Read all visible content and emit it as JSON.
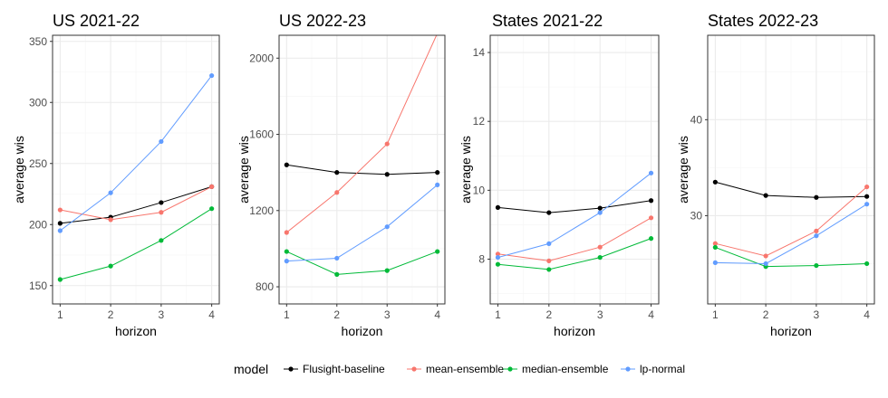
{
  "chart_data": [
    {
      "type": "line",
      "title": "US 2021-22",
      "xlabel": "horizon",
      "ylabel": "average wis",
      "x": [
        1,
        2,
        3,
        4
      ],
      "xlim": [
        0.85,
        4.15
      ],
      "ylim": [
        135,
        355
      ],
      "yticks": [
        150,
        200,
        250,
        300,
        350
      ],
      "series": [
        {
          "name": "Flusight-baseline",
          "values": [
            201,
            206,
            218,
            231
          ]
        },
        {
          "name": "mean-ensemble",
          "values": [
            212,
            204,
            210,
            231
          ]
        },
        {
          "name": "median-ensemble",
          "values": [
            155,
            166,
            187,
            213
          ]
        },
        {
          "name": "lp-normal",
          "values": [
            195,
            226,
            268,
            322
          ]
        }
      ]
    },
    {
      "type": "line",
      "title": "US 2022-23",
      "xlabel": "horizon",
      "ylabel": "average wis",
      "x": [
        1,
        2,
        3,
        4
      ],
      "xlim": [
        0.85,
        4.15
      ],
      "ylim": [
        710,
        2120
      ],
      "yticks": [
        800,
        1200,
        1600,
        2000
      ],
      "series": [
        {
          "name": "Flusight-baseline",
          "values": [
            1440,
            1400,
            1390,
            1400
          ]
        },
        {
          "name": "mean-ensemble",
          "values": [
            1085,
            1295,
            1550,
            2130
          ]
        },
        {
          "name": "median-ensemble",
          "values": [
            985,
            865,
            885,
            985
          ]
        },
        {
          "name": "lp-normal",
          "values": [
            935,
            950,
            1115,
            1335
          ]
        }
      ]
    },
    {
      "type": "line",
      "title": "States 2021-22",
      "xlabel": "horizon",
      "ylabel": "average wis",
      "x": [
        1,
        2,
        3,
        4
      ],
      "xlim": [
        0.85,
        4.15
      ],
      "ylim": [
        6.7,
        14.5
      ],
      "yticks": [
        8,
        10,
        12,
        14
      ],
      "series": [
        {
          "name": "Flusight-baseline",
          "values": [
            9.5,
            9.35,
            9.48,
            9.7
          ]
        },
        {
          "name": "mean-ensemble",
          "values": [
            8.15,
            7.95,
            8.35,
            9.2
          ]
        },
        {
          "name": "median-ensemble",
          "values": [
            7.85,
            7.7,
            8.05,
            8.6
          ]
        },
        {
          "name": "lp-normal",
          "values": [
            8.05,
            8.45,
            9.35,
            10.5
          ]
        }
      ]
    },
    {
      "type": "line",
      "title": "States 2022-23",
      "xlabel": "horizon",
      "ylabel": "average wis",
      "x": [
        1,
        2,
        3,
        4
      ],
      "xlim": [
        0.85,
        4.15
      ],
      "ylim": [
        20.8,
        48.8
      ],
      "yticks": [
        30,
        40
      ],
      "series": [
        {
          "name": "Flusight-baseline",
          "values": [
            33.5,
            32.1,
            31.9,
            32
          ]
        },
        {
          "name": "mean-ensemble",
          "values": [
            27.1,
            25.8,
            28.4,
            33
          ]
        },
        {
          "name": "median-ensemble",
          "values": [
            26.7,
            24.7,
            24.8,
            25
          ]
        },
        {
          "name": "lp-normal",
          "values": [
            25.1,
            25,
            27.9,
            31.2
          ]
        }
      ]
    }
  ],
  "legend": {
    "title": "model",
    "position": "bottom",
    "items": [
      {
        "label": "Flusight-baseline",
        "color": "#000000"
      },
      {
        "label": "mean-ensemble",
        "color": "#F8766D"
      },
      {
        "label": "median-ensemble",
        "color": "#00BA38"
      },
      {
        "label": "lp-normal",
        "color": "#619CFF"
      }
    ]
  },
  "style": {
    "grid": true,
    "grid_major_color": "#ebebeb",
    "grid_minor_color": "#f5f5f5",
    "panel_border_color": "#333333"
  }
}
